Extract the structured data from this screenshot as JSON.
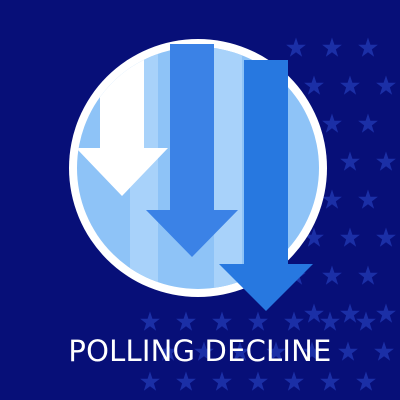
{
  "caption": "POLLING DECLINE",
  "colors": {
    "background": "#070f78",
    "star": "#1b2fa6",
    "circle_fill": "#8ec3f7",
    "circle_ring": "#ffffff",
    "arrow_white": "#ffffff",
    "arrow_mid": "#3b82e6",
    "arrow_dark": "#2778e0",
    "stripe_light": "#a8d2fa"
  },
  "icons": [
    "star-field",
    "down-arrow-icon",
    "circle-badge"
  ]
}
